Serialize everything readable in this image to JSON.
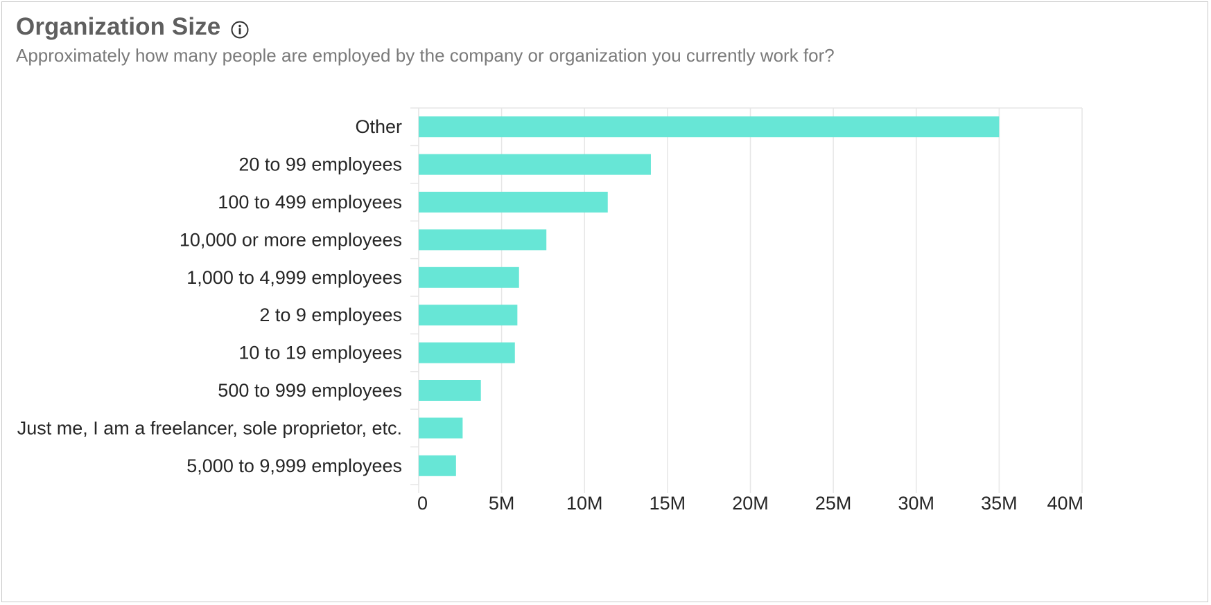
{
  "header": {
    "title": "Organization Size",
    "subtitle": "Approximately how many people are employed by the company or organization you currently work for?",
    "info_icon": "info-circle-icon"
  },
  "colors": {
    "bar": "#67E6D6",
    "grid": "#e6e6e6",
    "title": "#5f5f5f",
    "subtitle": "#7a7a7a",
    "text": "#262626"
  },
  "chart_data": {
    "type": "bar",
    "orientation": "horizontal",
    "title": "Organization Size",
    "subtitle": "Approximately how many people are employed by the company or organization you currently work for?",
    "xlabel": "",
    "ylabel": "",
    "categories": [
      "Other",
      "20 to 99 employees",
      "100 to 499 employees",
      "10,000 or more employees",
      "1,000 to 4,999 employees",
      "2 to 9 employees",
      "10 to 19 employees",
      "500 to 999 employees",
      "Just me, I am a freelancer, sole proprietor, etc.",
      "5,000 to 9,999 employees"
    ],
    "values": [
      35000000,
      14000000,
      11400000,
      7700000,
      6050000,
      5950000,
      5800000,
      3750000,
      2650000,
      2250000
    ],
    "xlim": [
      0,
      40000000
    ],
    "ticks": [
      0,
      5000000,
      10000000,
      15000000,
      20000000,
      25000000,
      30000000,
      35000000,
      40000000
    ],
    "tick_labels": [
      "0",
      "5M",
      "10M",
      "15M",
      "20M",
      "25M",
      "30M",
      "35M",
      "40M"
    ],
    "grid": true,
    "legend": "none"
  }
}
